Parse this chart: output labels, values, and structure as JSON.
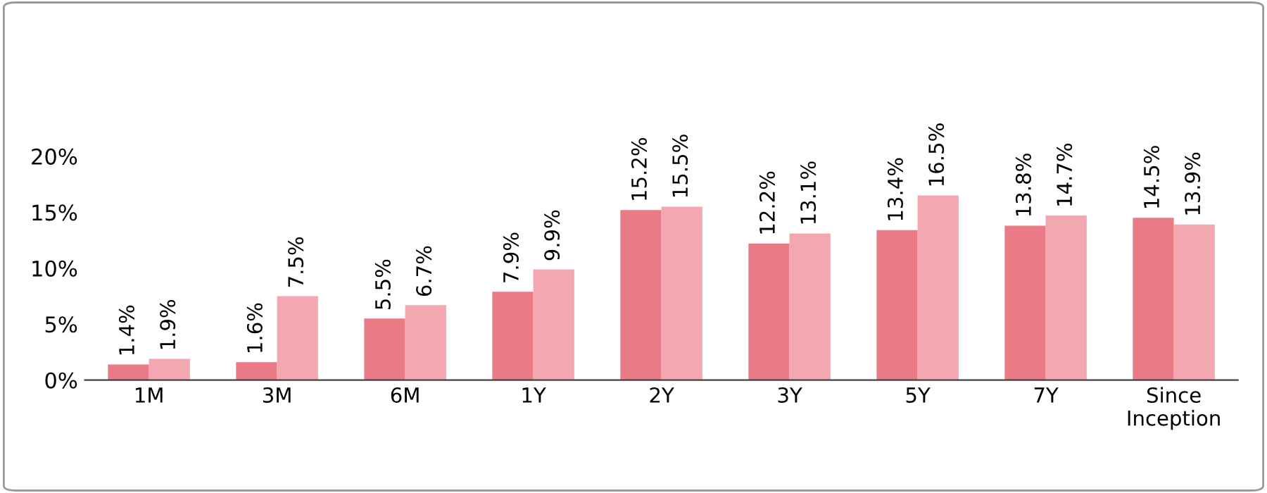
{
  "chart_data": {
    "type": "bar",
    "categories": [
      "1M",
      "3M",
      "6M",
      "1Y",
      "2Y",
      "3Y",
      "5Y",
      "7Y",
      "Since\nInception"
    ],
    "series": [
      {
        "color": "#e97a86",
        "values": [
          1.4,
          1.6,
          5.5,
          7.9,
          15.2,
          12.2,
          13.4,
          13.8,
          14.5
        ],
        "value_labels": [
          "1.4%",
          "1.6%",
          "5.5%",
          "7.9%",
          "15.2%",
          "12.2%",
          "13.4%",
          "13.8%",
          "14.5%"
        ]
      },
      {
        "color": "#f3a7b0",
        "values": [
          1.9,
          7.5,
          6.7,
          9.9,
          15.5,
          13.1,
          16.5,
          14.7,
          13.9
        ],
        "value_labels": [
          "1.9%",
          "7.5%",
          "6.7%",
          "9.9%",
          "15.5%",
          "13.1%",
          "16.5%",
          "14.7%",
          "13.9%"
        ]
      }
    ],
    "ylim": [
      0,
      20
    ],
    "yticks": [
      {
        "value": 0,
        "label": "0%"
      },
      {
        "value": 5,
        "label": "5%"
      },
      {
        "value": 10,
        "label": "10%"
      },
      {
        "value": 15,
        "label": "15%"
      },
      {
        "value": 20,
        "label": "20%"
      }
    ],
    "grid": false,
    "legend": false
  }
}
